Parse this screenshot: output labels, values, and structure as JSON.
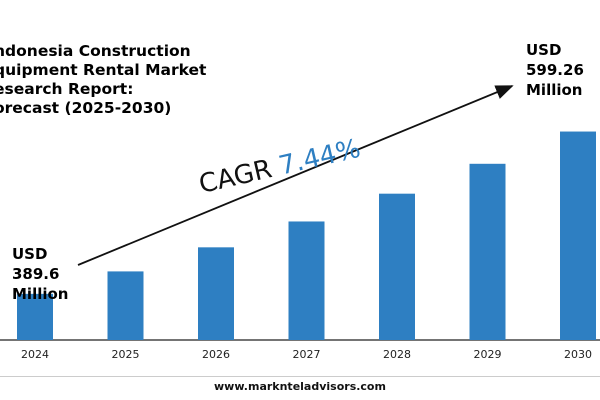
{
  "chart_data": {
    "type": "bar",
    "title": "ndonesia Construction\nquipment Rental Market\nesearch Report:\norecast (2025-2030)",
    "categories": [
      "2024",
      "2025",
      "2026",
      "2027",
      "2028",
      "2029",
      "2030"
    ],
    "values": [
      389.6,
      418.6,
      449.7,
      483.1,
      519.0,
      557.6,
      599.26
    ],
    "ylim": [
      330,
      640
    ],
    "start_label": [
      "USD",
      "389.6",
      "Million"
    ],
    "end_label": [
      "USD",
      "599.26",
      "Million"
    ],
    "cagr": {
      "text": "CAGR",
      "value": "7.44%"
    },
    "colors": {
      "bar": "#2e7fc2",
      "axis": "#222222",
      "arrow": "#111111"
    },
    "grid": false,
    "legend": "none"
  },
  "footer": {
    "url": "www.marknteladvisors.com"
  }
}
